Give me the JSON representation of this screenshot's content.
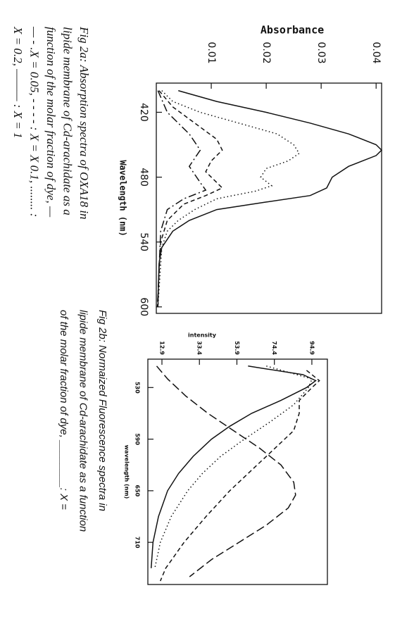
{
  "chart_data": [
    {
      "type": "line",
      "y_label": "Absorbance",
      "x_label": "Wavelength (nm)",
      "xlim": [
        393,
        606
      ],
      "ylim": [
        0,
        0.041
      ],
      "xticks": [
        420,
        480,
        540,
        600
      ],
      "yticks": [
        0.01,
        0.02,
        0.03,
        0.04
      ],
      "series": [
        {
          "color": "#111",
          "dash": "solid",
          "x": [
            400,
            410,
            420,
            430,
            440,
            450,
            455,
            460,
            470,
            480,
            490,
            497,
            503,
            510,
            520,
            530,
            545,
            560,
            600
          ],
          "values": [
            0.004,
            0.011,
            0.02,
            0.028,
            0.035,
            0.04,
            0.041,
            0.04,
            0.035,
            0.032,
            0.031,
            0.028,
            0.02,
            0.011,
            0.006,
            0.003,
            0.001,
            0.0005,
            0.0003
          ]
        },
        {
          "color": "#111",
          "dash": "dotted",
          "x": [
            400,
            410,
            420,
            430,
            440,
            450,
            458,
            465,
            472,
            480,
            488,
            493,
            500,
            510,
            520,
            530,
            545,
            600
          ],
          "values": [
            0.001,
            0.003,
            0.008,
            0.015,
            0.022,
            0.025,
            0.026,
            0.024,
            0.02,
            0.019,
            0.021,
            0.018,
            0.011,
            0.007,
            0.004,
            0.002,
            0.001,
            0.0003
          ]
        },
        {
          "color": "#111",
          "dash": "dashed",
          "x": [
            400,
            415,
            430,
            445,
            455,
            465,
            475,
            485,
            490,
            497,
            505,
            520,
            540,
            600
          ],
          "values": [
            0.0005,
            0.003,
            0.007,
            0.011,
            0.012,
            0.01,
            0.009,
            0.011,
            0.012,
            0.009,
            0.005,
            0.002,
            0.0008,
            0.0002
          ]
        },
        {
          "color": "#111",
          "dash": "dashdot",
          "x": [
            400,
            420,
            440,
            455,
            470,
            485,
            492,
            500,
            510,
            530,
            600
          ],
          "values": [
            0.0003,
            0.002,
            0.006,
            0.008,
            0.006,
            0.008,
            0.009,
            0.005,
            0.002,
            0.0008,
            0.0002
          ]
        }
      ]
    },
    {
      "type": "line",
      "y_label": "intensity",
      "x_label": "wavelength (nm)",
      "xlim": [
        497,
        759
      ],
      "ylim": [
        5.2,
        103.4
      ],
      "xticks": [
        530,
        590,
        650,
        710
      ],
      "yticks": [
        12.9,
        33.4,
        53.9,
        74.4,
        94.9
      ],
      "series": [
        {
          "color": "#111",
          "dash": "solid",
          "x": [
            505,
            515,
            522,
            530,
            545,
            560,
            575,
            590,
            610,
            630,
            650,
            680,
            710,
            740
          ],
          "values": [
            60,
            90,
            97,
            92,
            78,
            62,
            50,
            40,
            30,
            22,
            16,
            11,
            8,
            7
          ]
        },
        {
          "color": "#111",
          "dash": "dotted",
          "x": [
            505,
            520,
            530,
            550,
            570,
            590,
            610,
            630,
            650,
            680,
            710,
            740
          ],
          "values": [
            70,
            95,
            93,
            85,
            72,
            58,
            45,
            35,
            27,
            18,
            12,
            9
          ]
        },
        {
          "color": "#111",
          "dash": "dashed",
          "x": [
            510,
            522,
            530,
            545,
            560,
            580,
            600,
            620,
            650,
            680,
            710,
            740,
            755
          ],
          "values": [
            92,
            99,
            95,
            88,
            88,
            85,
            75,
            65,
            50,
            37,
            25,
            15,
            12
          ]
        },
        {
          "color": "#111",
          "dash": "longdash",
          "x": [
            505,
            520,
            540,
            560,
            580,
            600,
            620,
            640,
            655,
            670,
            690,
            710,
            730,
            750
          ],
          "values": [
            10,
            16,
            26,
            38,
            52,
            66,
            78,
            85,
            86,
            82,
            70,
            55,
            40,
            28
          ]
        }
      ]
    }
  ],
  "captions": [
    {
      "lines": [
        "Fig 2a: Absorption spectra of OXA18 in",
        "lipide membrane of Cd-arachidate as a",
        "function of the  molar fraction of dye, —",
        "— - .X = 0.05, - - - - : X = X 0.1, ........ :",
        "X = 0.2, ——— : X = 1"
      ]
    },
    {
      "lines": [
        "Fig 2b: Normaized Fluorescence spectra in",
        "lipide membrane of Cd-arachidate as a function",
        "of the  molar fraction of dye, ________: X ="
      ]
    }
  ]
}
